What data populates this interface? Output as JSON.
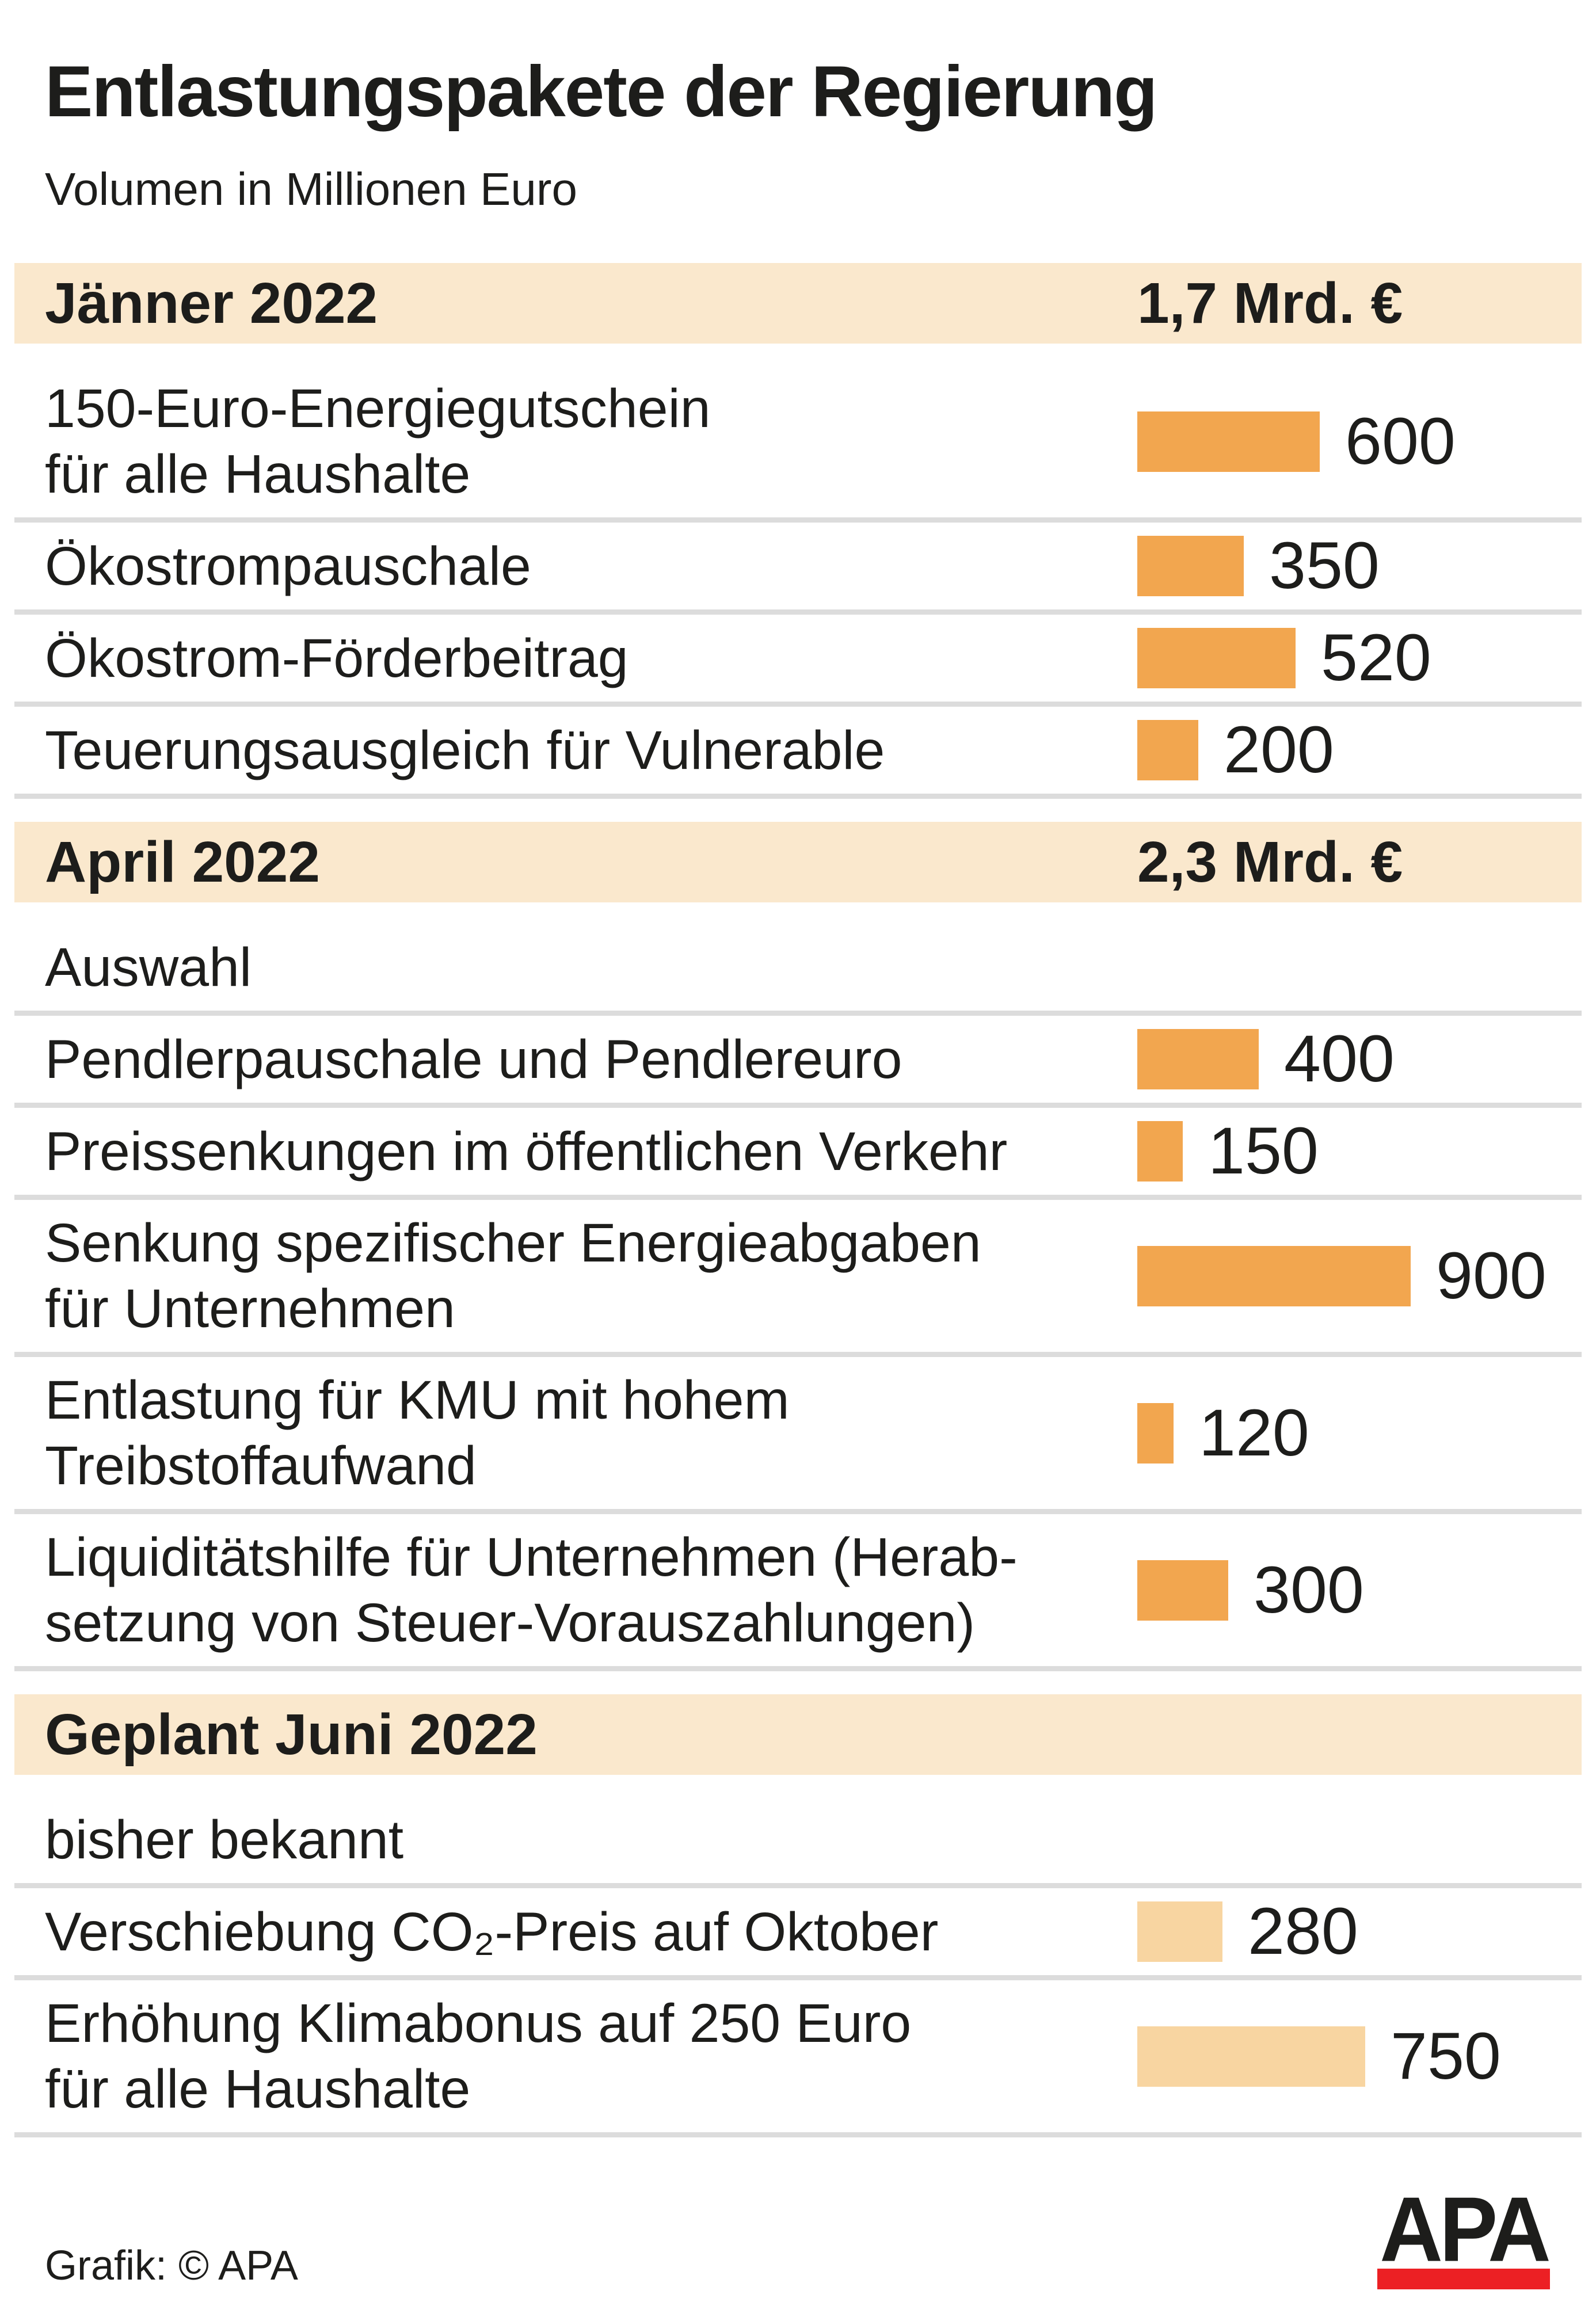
{
  "title": "Entlastungspakete der Regierung",
  "subtitle": "Volumen in Millionen Euro",
  "footer": {
    "credit": "Grafik: © APA",
    "logo_text": "APA"
  },
  "colors": {
    "section_band_background": "#fae8cd",
    "bar_orange": "#f2a64f",
    "bar_planned_light": "#f8d5a1",
    "separator_gray": "#dcdcdc",
    "apa_logo_red": "#ec2024",
    "text": "#1d1d1b"
  },
  "chart_data": {
    "type": "bar",
    "orientation": "horizontal",
    "title": "Entlastungspakete der Regierung",
    "unit": "Millionen Euro",
    "value_axis_max": 900,
    "grid": false,
    "legend": "none",
    "sections": [
      {
        "header": "Jänner 2022",
        "total": "1,7 Mrd. €",
        "planned": false,
        "items": [
          {
            "label": "150-Euro-Energiegutschein\nfür alle Haushalte",
            "value": 600
          },
          {
            "label": "Ökostrompauschale",
            "value": 350
          },
          {
            "label": "Ökostrom-Förderbeitrag",
            "value": 520
          },
          {
            "label": "Teuerungsausgleich für Vulnerable",
            "value": 200
          }
        ]
      },
      {
        "header": "April 2022",
        "total": "2,3 Mrd. €",
        "planned": false,
        "items": [
          {
            "label": "Auswahl",
            "value": null
          },
          {
            "label": "Pendlerpauschale und Pendlereuro",
            "value": 400
          },
          {
            "label": "Preissenkungen im öffentlichen Verkehr",
            "value": 150
          },
          {
            "label": "Senkung spezifischer Energieabgaben\nfür Unternehmen",
            "value": 900
          },
          {
            "label": "Entlastung für KMU mit hohem\nTreibstoffaufwand",
            "value": 120
          },
          {
            "label": "Liquiditätshilfe für Unternehmen (Herab-\nsetzung von Steuer-Vorauszahlungen)",
            "value": 300
          }
        ]
      },
      {
        "header": "Geplant Juni 2022",
        "total": "",
        "planned": true,
        "items": [
          {
            "label": "bisher bekannt",
            "value": null
          },
          {
            "label": "Verschiebung CO₂-Preis auf Oktober",
            "value": 280
          },
          {
            "label": "Erhöhung Klimabonus auf 250 Euro\nfür alle Haushalte",
            "value": 750
          }
        ]
      }
    ]
  }
}
